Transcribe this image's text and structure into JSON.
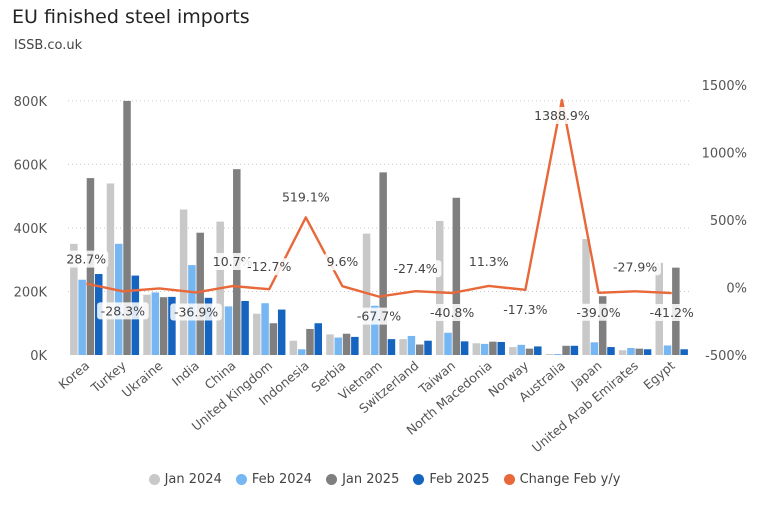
{
  "title": "EU finished steel imports",
  "subtitle": "ISSB.co.uk",
  "chart_data": {
    "type": "bar",
    "categories": [
      "Korea",
      "Turkey",
      "Ukraine",
      "India",
      "China",
      "United Kingdom",
      "Indonesia",
      "Serbia",
      "Vietnam",
      "Switzerland",
      "Taiwan",
      "North Macedonia",
      "Norway",
      "Australia",
      "Japan",
      "United Arab Emirates",
      "Egypt"
    ],
    "series": [
      {
        "name": "Jan 2024",
        "color": "#c8c8c8",
        "values": [
          350000,
          540000,
          190000,
          458000,
          420000,
          130000,
          45000,
          65000,
          382000,
          50000,
          422000,
          37000,
          25000,
          3000,
          365000,
          15000,
          290000
        ]
      },
      {
        "name": "Feb 2024",
        "color": "#76b6f2",
        "values": [
          237000,
          350000,
          197000,
          283000,
          153000,
          163000,
          18000,
          55000,
          155000,
          60000,
          70000,
          35000,
          32000,
          3000,
          40000,
          22000,
          30000
        ]
      },
      {
        "name": "Jan 2025",
        "color": "#7f7f7f",
        "values": [
          557000,
          800000,
          182000,
          385000,
          585000,
          100000,
          82000,
          67000,
          575000,
          33000,
          495000,
          42000,
          20000,
          29000,
          185000,
          20000,
          275000
        ]
      },
      {
        "name": "Feb 2025",
        "color": "#1565c0",
        "values": [
          255000,
          250000,
          183000,
          180000,
          170000,
          143000,
          100000,
          57000,
          50000,
          45000,
          43000,
          41000,
          27000,
          29000,
          25000,
          18000,
          18000
        ]
      }
    ],
    "line_series": {
      "name": "Change Feb y/y",
      "color": "#e8683a",
      "values": [
        28.7,
        -28.3,
        -7.1,
        -36.9,
        10.7,
        -12.7,
        519.1,
        9.6,
        -67.7,
        -27.4,
        -40.8,
        11.3,
        -17.3,
        1388.9,
        -39.0,
        -27.9,
        -41.2
      ],
      "data_labels": [
        "28.7%",
        "-28.3%",
        "",
        "-36.9%",
        "10.7%",
        "-12.7%",
        "519.1%",
        "9.6%",
        "-67.7%",
        "-27.4%",
        "-40.8%",
        "11.3%",
        "-17.3%",
        "1388.9%",
        "-39.0%",
        "-27.9%",
        "-41.2%"
      ]
    },
    "y_left": {
      "ticks": [
        "0K",
        "200K",
        "400K",
        "600K",
        "800K"
      ],
      "values": [
        0,
        200000,
        400000,
        600000,
        800000
      ],
      "range": [
        0,
        850000
      ]
    },
    "y_right": {
      "ticks": [
        "-500%",
        "0%",
        "500%",
        "1000%",
        "1500%"
      ],
      "values": [
        -500,
        0,
        500,
        1000,
        1500
      ],
      "range": [
        -500,
        1500
      ]
    },
    "grid": true,
    "legend_position": "bottom"
  }
}
